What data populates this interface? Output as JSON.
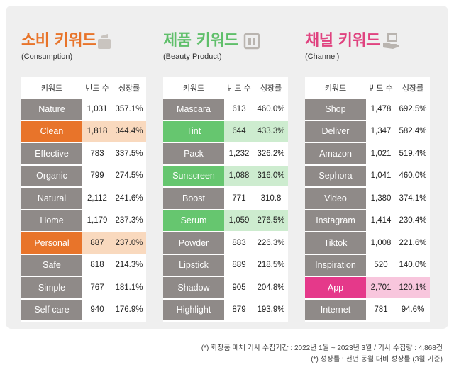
{
  "notes": [
    "(*) 화장품 매체 기사 수집기간 : 2022년 1월 ~ 2023년 3월 / 기사 수집량 : 4,868건",
    "(*) 성장률 : 전년 동월 대비 성장률 (3월 기준)"
  ],
  "sections": [
    {
      "title": "소비 키워드",
      "subtitle": "(Consumption)",
      "icon": "cosmetic-jar-icon",
      "headers": {
        "keyword": "키워드",
        "freq": "빈도 수",
        "growth": "성장률"
      },
      "rows": [
        {
          "keyword": "Nature",
          "freq": "1,031",
          "growth": "357.1%",
          "highlight": ""
        },
        {
          "keyword": "Clean",
          "freq": "1,818",
          "growth": "344.4%",
          "highlight": "orange"
        },
        {
          "keyword": "Effective",
          "freq": "783",
          "growth": "337.5%",
          "highlight": ""
        },
        {
          "keyword": "Organic",
          "freq": "799",
          "growth": "274.5%",
          "highlight": ""
        },
        {
          "keyword": "Natural",
          "freq": "2,112",
          "growth": "241.6%",
          "highlight": ""
        },
        {
          "keyword": "Home",
          "freq": "1,179",
          "growth": "237.3%",
          "highlight": ""
        },
        {
          "keyword": "Personal",
          "freq": "887",
          "growth": "237.0%",
          "highlight": "orange"
        },
        {
          "keyword": "Safe",
          "freq": "818",
          "growth": "214.3%",
          "highlight": ""
        },
        {
          "keyword": "Simple",
          "freq": "767",
          "growth": "181.1%",
          "highlight": ""
        },
        {
          "keyword": "Self care",
          "freq": "940",
          "growth": "176.9%",
          "highlight": ""
        }
      ]
    },
    {
      "title": "제품 키워드",
      "subtitle": "(Beauty Product)",
      "icon": "book-icon",
      "headers": {
        "keyword": "키워드",
        "freq": "빈도 수",
        "growth": "성장률"
      },
      "rows": [
        {
          "keyword": "Mascara",
          "freq": "613",
          "growth": "460.0%",
          "highlight": ""
        },
        {
          "keyword": "Tint",
          "freq": "644",
          "growth": "433.3%",
          "highlight": "green"
        },
        {
          "keyword": "Pack",
          "freq": "1,232",
          "growth": "326.2%",
          "highlight": ""
        },
        {
          "keyword": "Sunscreen",
          "freq": "1,088",
          "growth": "316.0%",
          "highlight": "green"
        },
        {
          "keyword": "Boost",
          "freq": "771",
          "growth": "310.8",
          "highlight": ""
        },
        {
          "keyword": "Serum",
          "freq": "1,059",
          "growth": "276.5%",
          "highlight": "green"
        },
        {
          "keyword": "Powder",
          "freq": "883",
          "growth": "226.3%",
          "highlight": ""
        },
        {
          "keyword": "Lipstick",
          "freq": "889",
          "growth": "218.5%",
          "highlight": ""
        },
        {
          "keyword": "Shadow",
          "freq": "905",
          "growth": "204.8%",
          "highlight": ""
        },
        {
          "keyword": "Highlight",
          "freq": "879",
          "growth": "193.9%",
          "highlight": ""
        }
      ]
    },
    {
      "title": "채널 키워드",
      "subtitle": "(Channel)",
      "icon": "hand-box-icon",
      "headers": {
        "keyword": "키워드",
        "freq": "빈도 수",
        "growth": "성장률"
      },
      "rows": [
        {
          "keyword": "Shop",
          "freq": "1,478",
          "growth": "692.5%",
          "highlight": ""
        },
        {
          "keyword": "Deliver",
          "freq": "1,347",
          "growth": "582.4%",
          "highlight": ""
        },
        {
          "keyword": "Amazon",
          "freq": "1,021",
          "growth": "519.4%",
          "highlight": ""
        },
        {
          "keyword": "Sephora",
          "freq": "1,041",
          "growth": "460.0%",
          "highlight": ""
        },
        {
          "keyword": "Video",
          "freq": "1,380",
          "growth": "374.1%",
          "highlight": ""
        },
        {
          "keyword": "Instagram",
          "freq": "1,414",
          "growth": "230.4%",
          "highlight": ""
        },
        {
          "keyword": "Tiktok",
          "freq": "1,008",
          "growth": "221.6%",
          "highlight": ""
        },
        {
          "keyword": "Inspiration",
          "freq": "520",
          "growth": "140.0%",
          "highlight": ""
        },
        {
          "keyword": "App",
          "freq": "2,701",
          "growth": "120.1%",
          "highlight": "pink"
        },
        {
          "keyword": "Internet",
          "freq": "781",
          "growth": "94.6%",
          "highlight": ""
        }
      ]
    }
  ],
  "colors": {
    "consumption_accent": "#e8742a",
    "product_accent": "#5fbf6a",
    "channel_accent": "#e0427f",
    "keyword_cell": "#8f8a88"
  }
}
